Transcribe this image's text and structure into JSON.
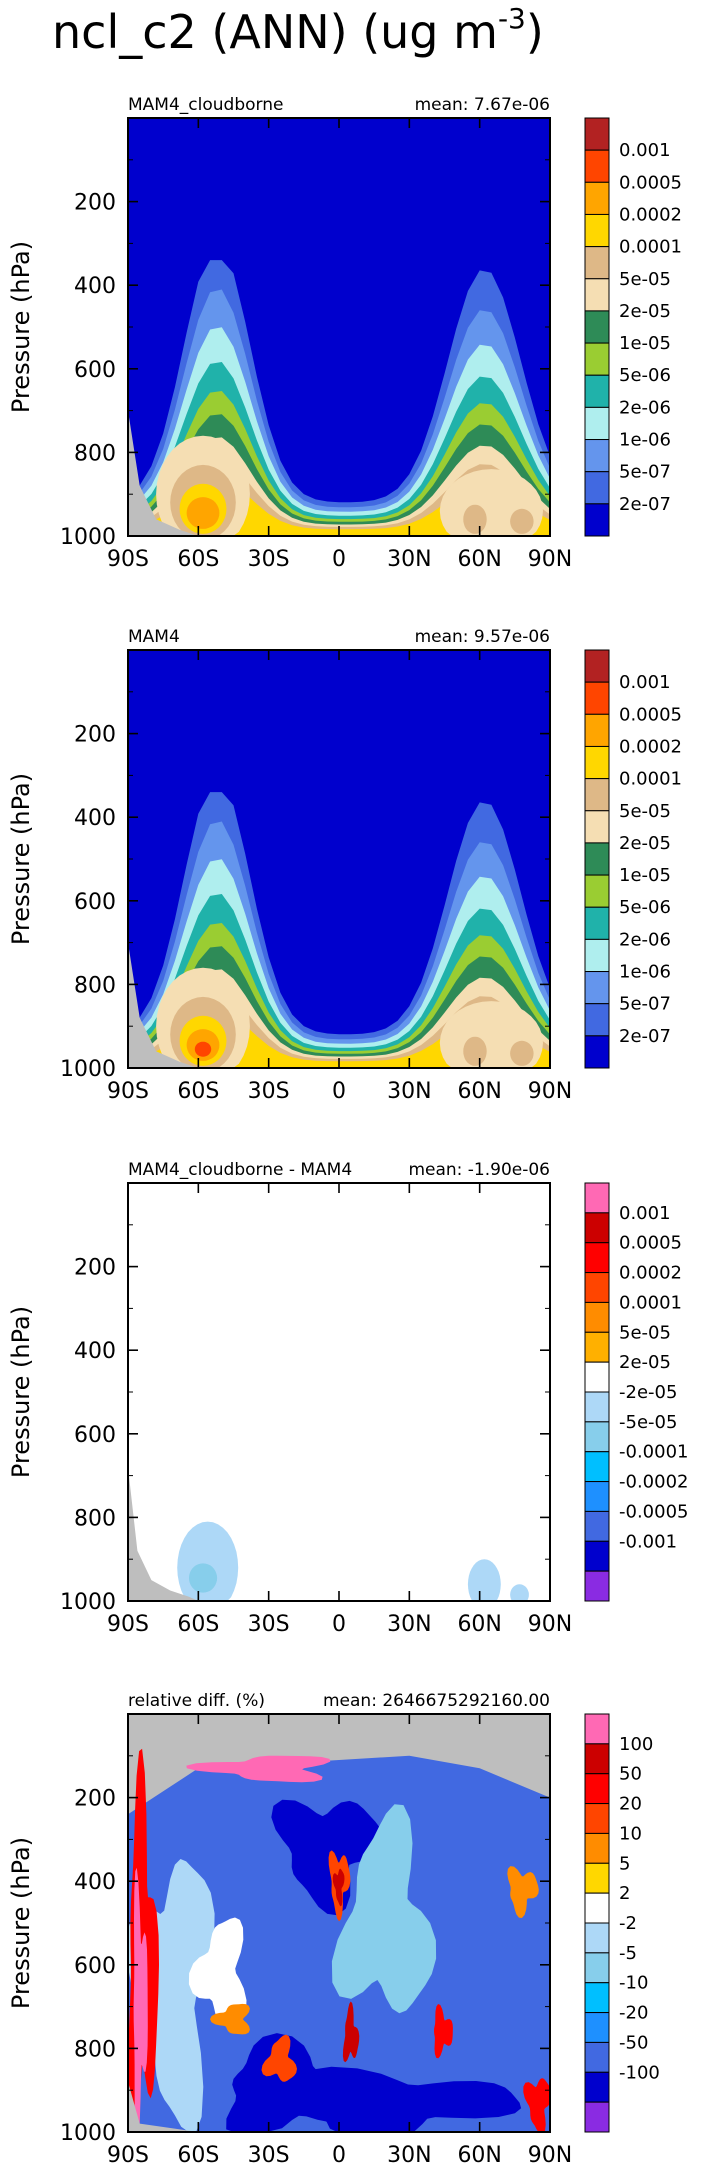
{
  "title": "ncl_c2 (ANN) (ug m$^{-3}$)",
  "title_parts": [
    "ncl_c2 (ANN) (ug m",
    "-3",
    ")"
  ],
  "chart_data": [
    {
      "type": "heatmap",
      "panel_label": "MAM4_cloudborne",
      "mean_text": "mean: 7.67e-06",
      "ylabel": "Pressure (hPa)",
      "xticks": [
        "90S",
        "60S",
        "30S",
        "0",
        "30N",
        "60N",
        "90N"
      ],
      "yticks": [
        "200",
        "400",
        "600",
        "800",
        "1000"
      ],
      "ylim": [
        0,
        1000
      ],
      "y_inverted": true,
      "xlim": [
        -90,
        90
      ],
      "colorbar": {
        "levels": [
          "0.001",
          "0.0005",
          "0.0002",
          "0.0001",
          "5e-05",
          "2e-05",
          "1e-05",
          "5e-06",
          "2e-06",
          "1e-06",
          "5e-07",
          "2e-07"
        ],
        "colors": [
          "#b22222",
          "#ff4500",
          "#ffa500",
          "#ffd700",
          "#deb887",
          "#f5deb3",
          "#2e8b57",
          "#9acd32",
          "#20b2aa",
          "#afeeee",
          "#6495ed",
          "#4169e1",
          "#0000cd"
        ]
      }
    },
    {
      "type": "heatmap",
      "panel_label": "MAM4",
      "mean_text": "mean: 9.57e-06",
      "ylabel": "Pressure (hPa)",
      "xticks": [
        "90S",
        "60S",
        "30S",
        "0",
        "30N",
        "60N",
        "90N"
      ],
      "yticks": [
        "200",
        "400",
        "600",
        "800",
        "1000"
      ],
      "ylim": [
        0,
        1000
      ],
      "y_inverted": true,
      "xlim": [
        -90,
        90
      ],
      "colorbar": {
        "levels": [
          "0.001",
          "0.0005",
          "0.0002",
          "0.0001",
          "5e-05",
          "2e-05",
          "1e-05",
          "5e-06",
          "2e-06",
          "1e-06",
          "5e-07",
          "2e-07"
        ],
        "colors": [
          "#b22222",
          "#ff4500",
          "#ffa500",
          "#ffd700",
          "#deb887",
          "#f5deb3",
          "#2e8b57",
          "#9acd32",
          "#20b2aa",
          "#afeeee",
          "#6495ed",
          "#4169e1",
          "#0000cd"
        ]
      }
    },
    {
      "type": "heatmap",
      "panel_label": "MAM4_cloudborne - MAM4",
      "mean_text": "mean: -1.90e-06",
      "ylabel": "Pressure (hPa)",
      "xticks": [
        "90S",
        "60S",
        "30S",
        "0",
        "30N",
        "60N",
        "90N"
      ],
      "yticks": [
        "200",
        "400",
        "600",
        "800",
        "1000"
      ],
      "ylim": [
        0,
        1000
      ],
      "y_inverted": true,
      "xlim": [
        -90,
        90
      ],
      "colorbar": {
        "levels": [
          "0.001",
          "0.0005",
          "0.0002",
          "0.0001",
          "5e-05",
          "2e-05",
          "-2e-05",
          "-5e-05",
          "-0.0001",
          "-0.0002",
          "-0.0005",
          "-0.001"
        ],
        "colors": [
          "#ff69b4",
          "#cc0000",
          "#ff0000",
          "#ff4500",
          "#ff8c00",
          "#ffb000",
          "#ffffff",
          "#add8f7",
          "#87ceeb",
          "#00bfff",
          "#1e90ff",
          "#4169e1",
          "#0000cd",
          "#8a2be2"
        ]
      }
    },
    {
      "type": "heatmap",
      "panel_label": "relative diff. (%)",
      "mean_text": "mean: 2646675292160.00",
      "ylabel": "Pressure (hPa)",
      "xticks": [
        "90S",
        "60S",
        "30S",
        "0",
        "30N",
        "60N",
        "90N"
      ],
      "yticks": [
        "200",
        "400",
        "600",
        "800",
        "1000"
      ],
      "ylim": [
        0,
        1000
      ],
      "y_inverted": true,
      "xlim": [
        -90,
        90
      ],
      "colorbar": {
        "levels": [
          "100",
          "50",
          "20",
          "10",
          "5",
          "2",
          "-2",
          "-5",
          "-10",
          "-20",
          "-50",
          "-100"
        ],
        "colors": [
          "#ff69b4",
          "#cc0000",
          "#ff0000",
          "#ff4500",
          "#ff8c00",
          "#ffd700",
          "#ffffff",
          "#add8f7",
          "#87ceeb",
          "#00bfff",
          "#1e90ff",
          "#4169e1",
          "#0000cd",
          "#8a2be2"
        ]
      }
    }
  ]
}
